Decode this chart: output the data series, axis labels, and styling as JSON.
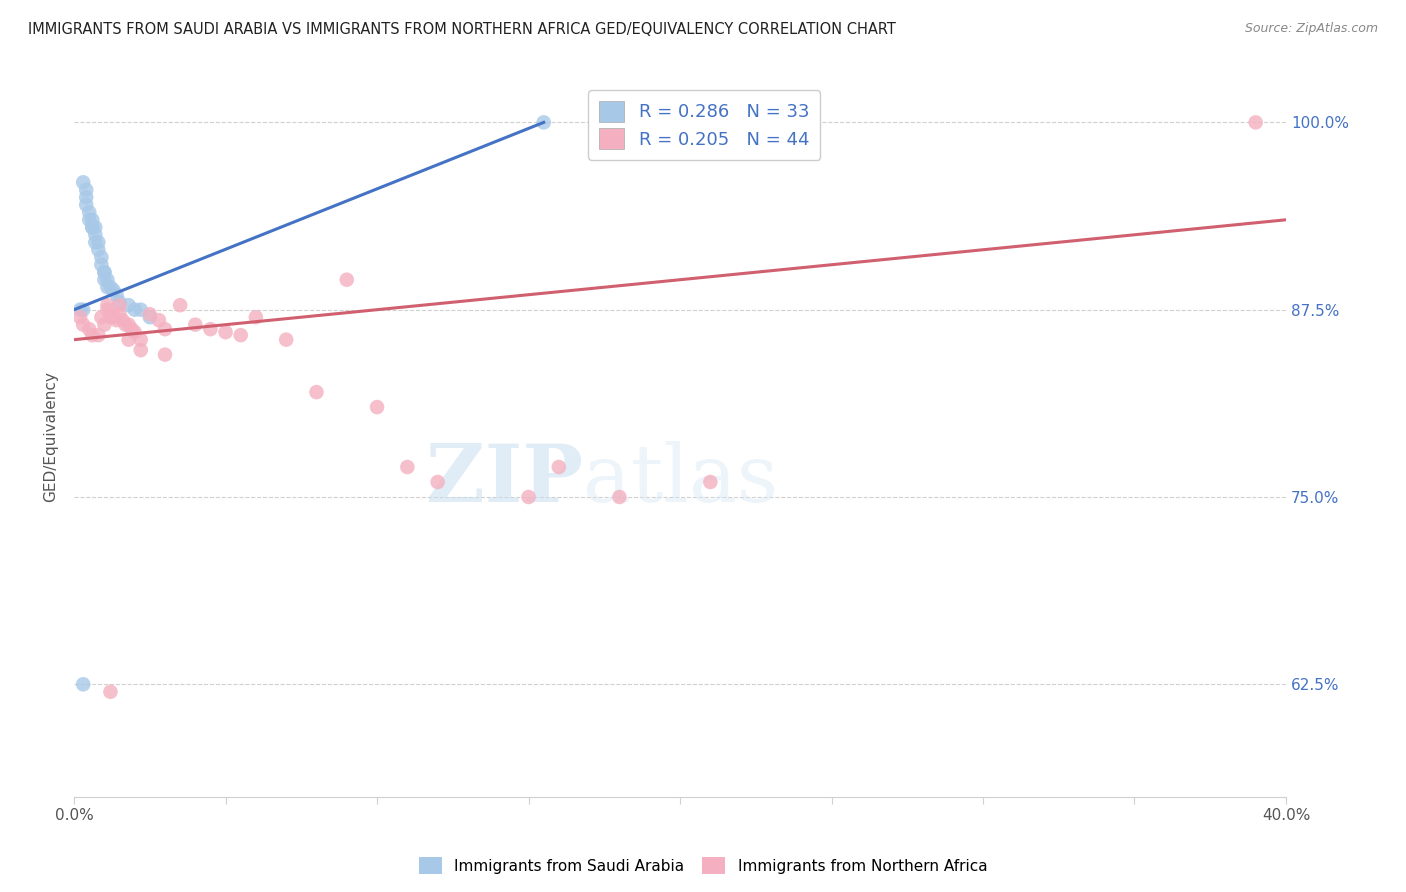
{
  "title": "IMMIGRANTS FROM SAUDI ARABIA VS IMMIGRANTS FROM NORTHERN AFRICA GED/EQUIVALENCY CORRELATION CHART",
  "source": "Source: ZipAtlas.com",
  "ylabel": "GED/Equivalency",
  "xlim": [
    0.0,
    0.4
  ],
  "ylim": [
    0.55,
    1.03
  ],
  "yticks": [
    0.625,
    0.75,
    0.875,
    1.0
  ],
  "yticklabels": [
    "62.5%",
    "75.0%",
    "87.5%",
    "100.0%"
  ],
  "blue_R": 0.286,
  "blue_N": 33,
  "pink_R": 0.205,
  "pink_N": 44,
  "blue_label": "Immigrants from Saudi Arabia",
  "pink_label": "Immigrants from Northern Africa",
  "blue_color": "#a8c8e8",
  "pink_color": "#f4b0c0",
  "blue_line_color": "#4472c4",
  "pink_line_color": "#d06070",
  "blue_line_x0": 0.0,
  "blue_line_y0": 0.875,
  "blue_line_x1": 0.155,
  "blue_line_y1": 1.0,
  "pink_line_x0": 0.0,
  "pink_line_y0": 0.855,
  "pink_line_x1": 0.4,
  "pink_line_y1": 0.935,
  "blue_x": [
    0.155,
    0.003,
    0.004,
    0.004,
    0.004,
    0.005,
    0.005,
    0.006,
    0.006,
    0.006,
    0.007,
    0.007,
    0.007,
    0.008,
    0.008,
    0.009,
    0.009,
    0.01,
    0.01,
    0.01,
    0.011,
    0.011,
    0.012,
    0.013,
    0.014,
    0.015,
    0.018,
    0.02,
    0.022,
    0.003,
    0.002,
    0.025,
    0.003
  ],
  "blue_y": [
    1.0,
    0.96,
    0.955,
    0.95,
    0.945,
    0.94,
    0.935,
    0.93,
    0.93,
    0.935,
    0.93,
    0.925,
    0.92,
    0.92,
    0.915,
    0.91,
    0.905,
    0.9,
    0.9,
    0.895,
    0.895,
    0.89,
    0.89,
    0.888,
    0.885,
    0.88,
    0.878,
    0.875,
    0.875,
    0.875,
    0.875,
    0.87,
    0.625
  ],
  "pink_x": [
    0.002,
    0.003,
    0.005,
    0.006,
    0.008,
    0.009,
    0.01,
    0.011,
    0.011,
    0.012,
    0.013,
    0.014,
    0.015,
    0.015,
    0.016,
    0.017,
    0.018,
    0.019,
    0.02,
    0.022,
    0.025,
    0.028,
    0.03,
    0.035,
    0.04,
    0.045,
    0.05,
    0.055,
    0.06,
    0.07,
    0.08,
    0.09,
    0.1,
    0.11,
    0.12,
    0.15,
    0.16,
    0.18,
    0.21,
    0.018,
    0.022,
    0.03,
    0.39,
    0.012
  ],
  "pink_y": [
    0.87,
    0.865,
    0.862,
    0.858,
    0.858,
    0.87,
    0.865,
    0.878,
    0.875,
    0.87,
    0.87,
    0.868,
    0.878,
    0.872,
    0.868,
    0.865,
    0.865,
    0.862,
    0.86,
    0.855,
    0.872,
    0.868,
    0.862,
    0.878,
    0.865,
    0.862,
    0.86,
    0.858,
    0.87,
    0.855,
    0.82,
    0.895,
    0.81,
    0.77,
    0.76,
    0.75,
    0.77,
    0.75,
    0.76,
    0.855,
    0.848,
    0.845,
    1.0,
    0.62
  ],
  "watermark_zip": "ZIP",
  "watermark_atlas": "atlas",
  "background_color": "#ffffff",
  "legend_color": "#4472c4",
  "grid_color": "#d0d0d0"
}
